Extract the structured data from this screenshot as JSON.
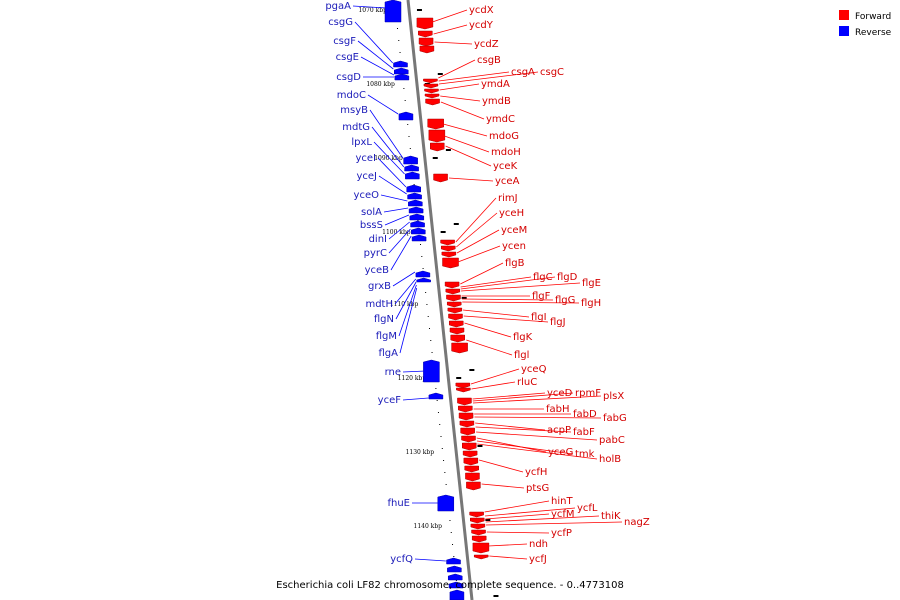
{
  "colors": {
    "forward": "#ff0000",
    "reverse": "#0000ff",
    "axis": "#777777"
  },
  "caption": "Escherichia coli LF82 chromosome, complete sequence. - 0..4773108",
  "legend": [
    {
      "label": "Forward",
      "color": "#ff0000"
    },
    {
      "label": "Reverse",
      "color": "#0000ff"
    }
  ],
  "scale_labels": [
    "1070 kbp",
    "1080 kbp",
    "1090 kbp",
    "1100 kbp",
    "1110 kbp",
    "1120 kbp",
    "1130 kbp",
    "1140 kbp"
  ],
  "forward_genes": [
    "ycdX",
    "ycdY",
    "ycdZ",
    "csgB",
    "csgA",
    "csgC",
    "ymdA",
    "ymdB",
    "ymdC",
    "mdoG",
    "mdoH",
    "yceK",
    "yceA",
    "rimJ",
    "yceH",
    "yceM",
    "ycen",
    "flgB",
    "flgC",
    "flgD",
    "flgE",
    "flgF",
    "flgG",
    "flgH",
    "flgI",
    "flgJ",
    "flgK",
    "flgl",
    "yceQ",
    "rluC",
    "yceD",
    "rpmF",
    "plsX",
    "fabH",
    "fabD",
    "fabG",
    "acpP",
    "fabF",
    "pabC",
    "yceG",
    "tmk",
    "holB",
    "ycfH",
    "ptsG",
    "hinT",
    "ycfL",
    "ycfM",
    "thiK",
    "nagZ",
    "ycfP",
    "ndh",
    "ycfJ"
  ],
  "reverse_genes": [
    "pgaA",
    "csgG",
    "csgF",
    "csgE",
    "csgD",
    "mdoC",
    "msyB",
    "mdtG",
    "lpxL",
    "yceI",
    "yceJ",
    "yceO",
    "solA",
    "bssS",
    "dinI",
    "pyrC",
    "yceB",
    "grxB",
    "mdtH",
    "flgN",
    "flgM",
    "flgA",
    "rne",
    "yceF",
    "fhuE",
    "ycfQ"
  ]
}
